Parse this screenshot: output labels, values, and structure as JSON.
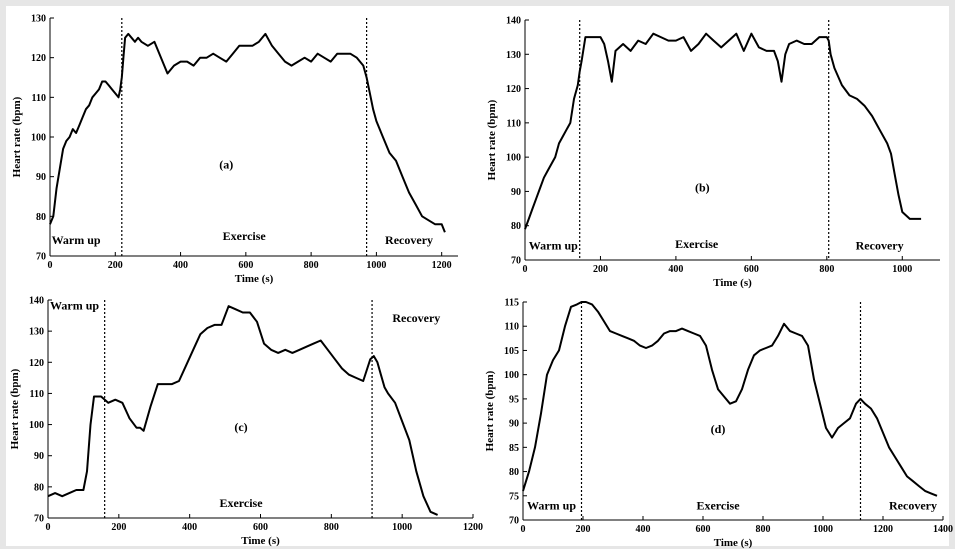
{
  "chart_data": [
    {
      "type": "line",
      "panel": "(a)",
      "xlabel": "Time (s)",
      "ylabel": "Heart rate (bpm)",
      "xlim": [
        0,
        1250
      ],
      "ylim": [
        70,
        130
      ],
      "xticks": [
        0,
        200,
        400,
        600,
        800,
        1000,
        1200
      ],
      "yticks": [
        70,
        80,
        90,
        100,
        110,
        120,
        130
      ],
      "dividers": [
        220,
        970
      ],
      "phases": [
        {
          "label": "Warm up",
          "x": 80,
          "y": 73
        },
        {
          "label": "Exercise",
          "x": 595,
          "y": 74
        },
        {
          "label": "Recovery",
          "x": 1100,
          "y": 73
        }
      ],
      "tag": {
        "text": "(a)",
        "x": 540,
        "y": 92
      },
      "x": [
        0,
        10,
        20,
        30,
        40,
        50,
        60,
        70,
        80,
        90,
        100,
        110,
        120,
        130,
        140,
        150,
        160,
        170,
        180,
        190,
        200,
        210,
        215,
        220,
        225,
        230,
        240,
        250,
        260,
        270,
        280,
        300,
        320,
        340,
        360,
        380,
        400,
        420,
        440,
        460,
        480,
        500,
        520,
        540,
        560,
        580,
        600,
        620,
        640,
        660,
        680,
        700,
        720,
        740,
        760,
        780,
        800,
        820,
        840,
        860,
        880,
        900,
        920,
        940,
        960,
        970,
        980,
        990,
        1000,
        1020,
        1040,
        1060,
        1080,
        1100,
        1120,
        1140,
        1160,
        1180,
        1200,
        1210
      ],
      "y": [
        78,
        80,
        87,
        92,
        97,
        99,
        100,
        102,
        101,
        103,
        105,
        107,
        108,
        110,
        111,
        112,
        114,
        114,
        113,
        112,
        111,
        110,
        112,
        115,
        120,
        125,
        126,
        125,
        124,
        125,
        124,
        123,
        124,
        120,
        116,
        118,
        119,
        119,
        118,
        120,
        120,
        121,
        120,
        119,
        121,
        123,
        123,
        123,
        124,
        126,
        123,
        121,
        119,
        118,
        119,
        120,
        119,
        121,
        120,
        119,
        121,
        121,
        121,
        120,
        118,
        115,
        111,
        107,
        104,
        100,
        96,
        94,
        90,
        86,
        83,
        80,
        79,
        78,
        78,
        76
      ]
    },
    {
      "type": "line",
      "panel": "(b)",
      "xlabel": "Time (s)",
      "ylabel": "Heart rate (bpm)",
      "xlim": [
        0,
        1100
      ],
      "ylim": [
        70,
        140
      ],
      "xticks": [
        0,
        200,
        400,
        600,
        800,
        1000
      ],
      "yticks": [
        70,
        80,
        90,
        100,
        110,
        120,
        130,
        140
      ],
      "dividers": [
        145,
        805
      ],
      "phases": [
        {
          "label": "Warm up",
          "x": 75,
          "y": 73
        },
        {
          "label": "Exercise",
          "x": 455,
          "y": 73.5
        },
        {
          "label": "Recovery",
          "x": 940,
          "y": 73
        }
      ],
      "tag": {
        "text": "(b)",
        "x": 470,
        "y": 90
      },
      "x": [
        0,
        10,
        20,
        30,
        40,
        50,
        60,
        70,
        80,
        90,
        100,
        110,
        120,
        130,
        140,
        145,
        150,
        160,
        180,
        200,
        210,
        220,
        230,
        240,
        260,
        280,
        300,
        320,
        340,
        360,
        380,
        400,
        420,
        440,
        460,
        480,
        500,
        520,
        540,
        560,
        580,
        600,
        620,
        640,
        660,
        670,
        680,
        690,
        700,
        720,
        740,
        760,
        780,
        800,
        805,
        810,
        820,
        840,
        860,
        880,
        900,
        920,
        940,
        960,
        970,
        980,
        990,
        1000,
        1020,
        1040,
        1050
      ],
      "y": [
        79,
        82,
        85,
        88,
        91,
        94,
        96,
        98,
        100,
        104,
        106,
        108,
        110,
        117,
        121,
        125,
        128,
        135,
        135,
        135,
        133,
        128,
        122,
        131,
        133,
        131,
        134,
        133,
        136,
        135,
        134,
        134,
        135,
        131,
        133,
        136,
        134,
        132,
        134,
        136,
        131,
        136,
        132,
        131,
        131,
        128,
        122,
        130,
        133,
        134,
        133,
        133,
        135,
        135,
        134,
        130,
        126,
        121,
        118,
        117,
        115,
        112,
        108,
        104,
        101,
        95,
        89,
        84,
        82,
        82,
        82
      ]
    },
    {
      "type": "line",
      "panel": "(c)",
      "xlabel": "Time (s)",
      "ylabel": "Heart rate (bpm)",
      "xlim": [
        0,
        1200
      ],
      "ylim": [
        70,
        140
      ],
      "xticks": [
        0,
        200,
        400,
        600,
        800,
        1000,
        1200
      ],
      "yticks": [
        70,
        80,
        90,
        100,
        110,
        120,
        130,
        140
      ],
      "dividers": [
        160,
        915
      ],
      "phases": [
        {
          "label": "Warm up",
          "x": 75,
          "y": 137
        },
        {
          "label": "Exercise",
          "x": 545,
          "y": 73.5
        },
        {
          "label": "Recovery",
          "x": 1040,
          "y": 133
        }
      ],
      "tag": {
        "text": "(c)",
        "x": 545,
        "y": 98
      },
      "x": [
        0,
        20,
        40,
        60,
        80,
        100,
        110,
        120,
        130,
        150,
        170,
        190,
        210,
        230,
        250,
        260,
        270,
        290,
        310,
        330,
        350,
        370,
        390,
        410,
        430,
        450,
        470,
        490,
        510,
        530,
        550,
        570,
        590,
        610,
        630,
        650,
        670,
        690,
        710,
        730,
        750,
        770,
        790,
        810,
        830,
        850,
        870,
        890,
        910,
        920,
        930,
        940,
        950,
        960,
        980,
        1000,
        1020,
        1040,
        1060,
        1080,
        1100
      ],
      "y": [
        77,
        78,
        77,
        78,
        79,
        79,
        85,
        100,
        109,
        109,
        107,
        108,
        107,
        102,
        99,
        99,
        98,
        106,
        113,
        113,
        113,
        114,
        119,
        124,
        129,
        131,
        132,
        132,
        138,
        137,
        136,
        136,
        133,
        126,
        124,
        123,
        124,
        123,
        124,
        125,
        126,
        127,
        124,
        121,
        118,
        116,
        115,
        114,
        121,
        122,
        120,
        116,
        112,
        110,
        107,
        101,
        95,
        85,
        77,
        72,
        71
      ]
    },
    {
      "type": "line",
      "panel": "(d)",
      "xlabel": "Time (s)",
      "ylabel": "Heart rate (bpm)",
      "xlim": [
        0,
        1400
      ],
      "ylim": [
        70,
        115
      ],
      "xticks": [
        0,
        200,
        400,
        600,
        800,
        1000,
        1200,
        1400
      ],
      "yticks": [
        70,
        75,
        80,
        85,
        90,
        95,
        100,
        105,
        110,
        115
      ],
      "dividers": [
        195,
        1125
      ],
      "phases": [
        {
          "label": "Warm up",
          "x": 95,
          "y": 72.2
        },
        {
          "label": "Exercise",
          "x": 650,
          "y": 72.2
        },
        {
          "label": "Recovery",
          "x": 1300,
          "y": 72.2
        }
      ],
      "tag": {
        "text": "(d)",
        "x": 650,
        "y": 88
      },
      "x": [
        0,
        20,
        40,
        60,
        80,
        100,
        120,
        140,
        160,
        180,
        195,
        210,
        230,
        250,
        270,
        290,
        310,
        330,
        350,
        370,
        390,
        410,
        430,
        450,
        470,
        490,
        510,
        530,
        550,
        570,
        590,
        610,
        630,
        650,
        670,
        690,
        710,
        730,
        750,
        770,
        790,
        810,
        830,
        850,
        870,
        890,
        910,
        930,
        950,
        970,
        990,
        1010,
        1030,
        1050,
        1070,
        1090,
        1110,
        1125,
        1140,
        1160,
        1180,
        1200,
        1220,
        1240,
        1260,
        1280,
        1300,
        1320,
        1340,
        1360,
        1380
      ],
      "y": [
        76,
        80,
        85,
        92,
        100,
        103,
        105,
        110,
        114,
        114.5,
        115,
        115,
        114.5,
        113,
        111,
        109,
        108.5,
        108,
        107.5,
        107,
        106,
        105.5,
        106,
        107,
        108.5,
        109,
        109,
        109.5,
        109,
        108.5,
        108,
        106,
        101,
        97,
        95.5,
        94,
        94.5,
        97,
        101,
        104,
        105,
        105.5,
        106,
        108,
        110.5,
        109,
        108.5,
        108,
        106,
        99,
        94,
        89,
        87,
        89,
        90,
        91,
        94,
        95,
        94,
        93,
        91,
        88,
        85,
        83,
        81,
        79,
        78,
        77,
        76,
        75.5,
        75
      ]
    }
  ]
}
